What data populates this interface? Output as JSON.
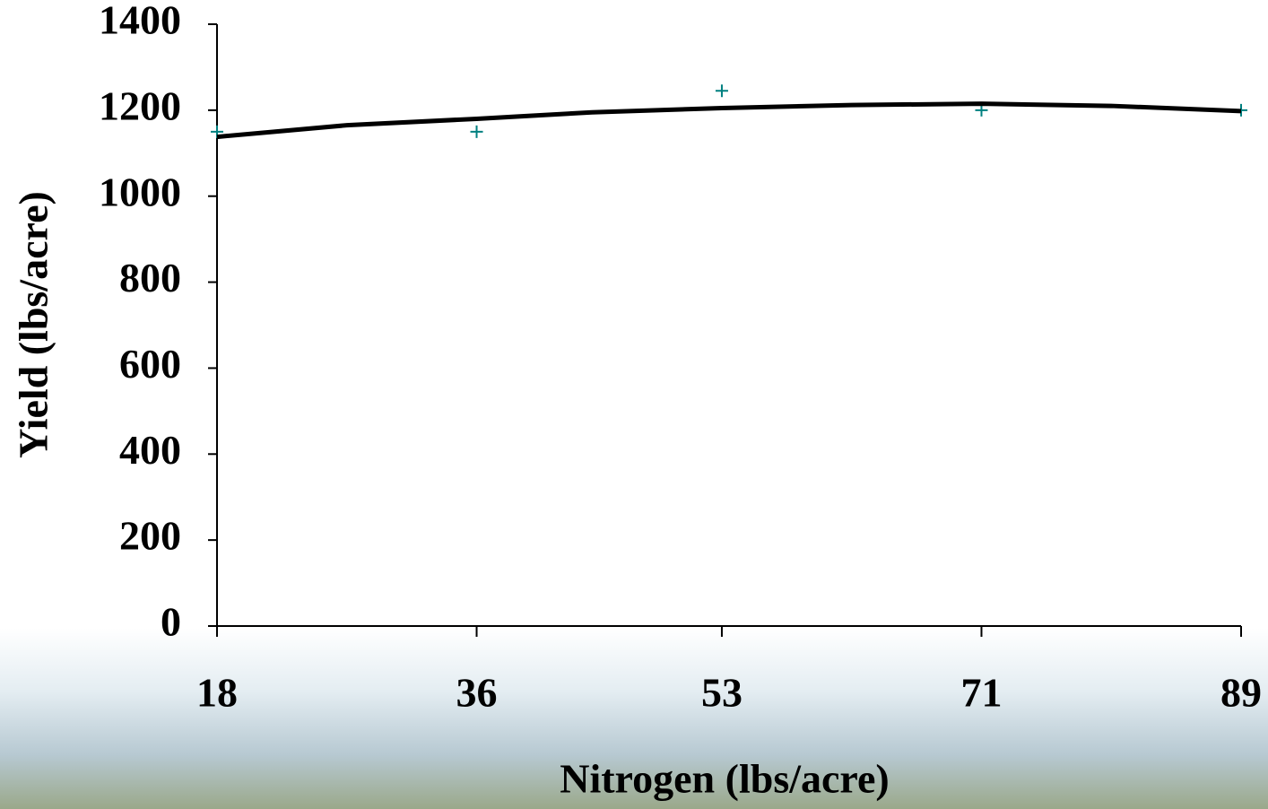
{
  "chart_data": {
    "type": "scatter",
    "x_label": "Nitrogen (lbs/acre)",
    "y_label": "Yield (lbs/acre)",
    "series": [
      {
        "color": "#008080",
        "marker": "+",
        "x": [
          18,
          36,
          53,
          71,
          89
        ],
        "values": [
          1150,
          1150,
          1245,
          1200,
          1200
        ]
      },
      {
        "color": "#000000",
        "line": true,
        "x": [
          18,
          27,
          36,
          44,
          53,
          62,
          71,
          80,
          89
        ],
        "values": [
          1138,
          1165,
          1180,
          1195,
          1205,
          1212,
          1215,
          1210,
          1198
        ]
      }
    ],
    "xlim": [
      18,
      89
    ],
    "xticks": [
      18,
      36,
      53,
      71,
      89
    ],
    "ylim": [
      0,
      1400
    ],
    "yticks": [
      0,
      200,
      400,
      600,
      800,
      1000,
      1200,
      1400
    ]
  }
}
